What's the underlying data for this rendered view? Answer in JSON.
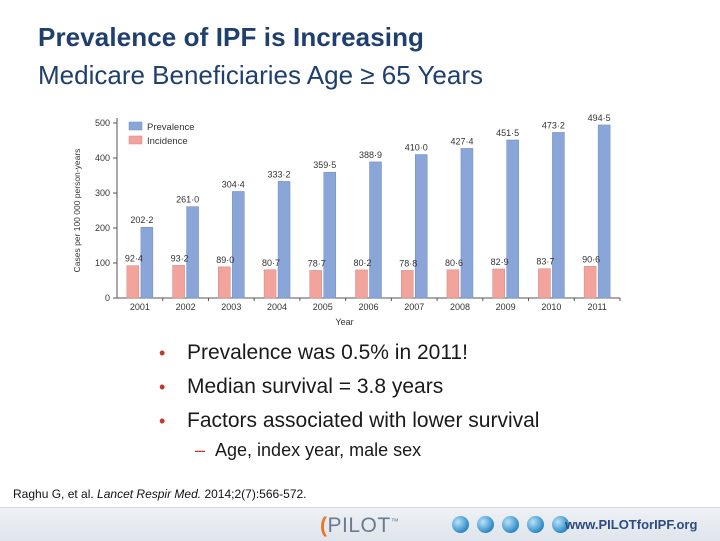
{
  "slide": {
    "title": "Prevalence of IPF is Increasing",
    "subtitle": "Medicare Beneficiaries Age ≥ 65 Years",
    "bullets": [
      "Prevalence was 0.5% in 2011!",
      "Median survival = 3.8 years",
      "Factors associated with lower survival"
    ],
    "subbullet": "Age, index year, male sex",
    "citation": {
      "authors": "Raghu G, et al. ",
      "journal": "Lancet Respir Med.",
      "details": " 2014;2(7):566-572."
    },
    "footer": {
      "logo_text": "PILOT",
      "url": "www.PILOTforIPF.org"
    }
  },
  "colors": {
    "title": "#1f3f6e",
    "prevalence": "#8aa6d8",
    "incidence": "#f2a39b",
    "bullet": "#c0392b"
  },
  "icons": {
    "logo": "pilot-logo-icon",
    "globes": "globe-icon"
  },
  "chart_data": {
    "type": "bar",
    "categories": [
      "2001",
      "2002",
      "2003",
      "2004",
      "2005",
      "2006",
      "2007",
      "2008",
      "2009",
      "2010",
      "2011"
    ],
    "series": [
      {
        "name": "Prevalence",
        "values": [
          202.2,
          261.0,
          304.4,
          333.2,
          359.5,
          388.9,
          410.0,
          427.4,
          451.5,
          473.2,
          494.5
        ],
        "labels": [
          "202·2",
          "261·0",
          "304·4",
          "333·2",
          "359·5",
          "388·9",
          "410·0",
          "427·4",
          "451·5",
          "473·2",
          "494·5"
        ]
      },
      {
        "name": "Incidence",
        "values": [
          92.4,
          93.2,
          89.0,
          80.7,
          78.7,
          80.2,
          78.8,
          80.6,
          82.9,
          83.7,
          90.6
        ],
        "labels": [
          "92·4",
          "93·2",
          "89·0",
          "80·7",
          "78·7",
          "80·2",
          "78·8",
          "80·6",
          "82·9",
          "83·7",
          "90·6"
        ]
      }
    ],
    "xlabel": "Year",
    "ylabel": "Cases per 100 000 person-years",
    "ylim": [
      0,
      500
    ],
    "yticks": [
      0,
      100,
      200,
      300,
      400,
      500
    ],
    "grid": false,
    "legend": "top-left"
  }
}
